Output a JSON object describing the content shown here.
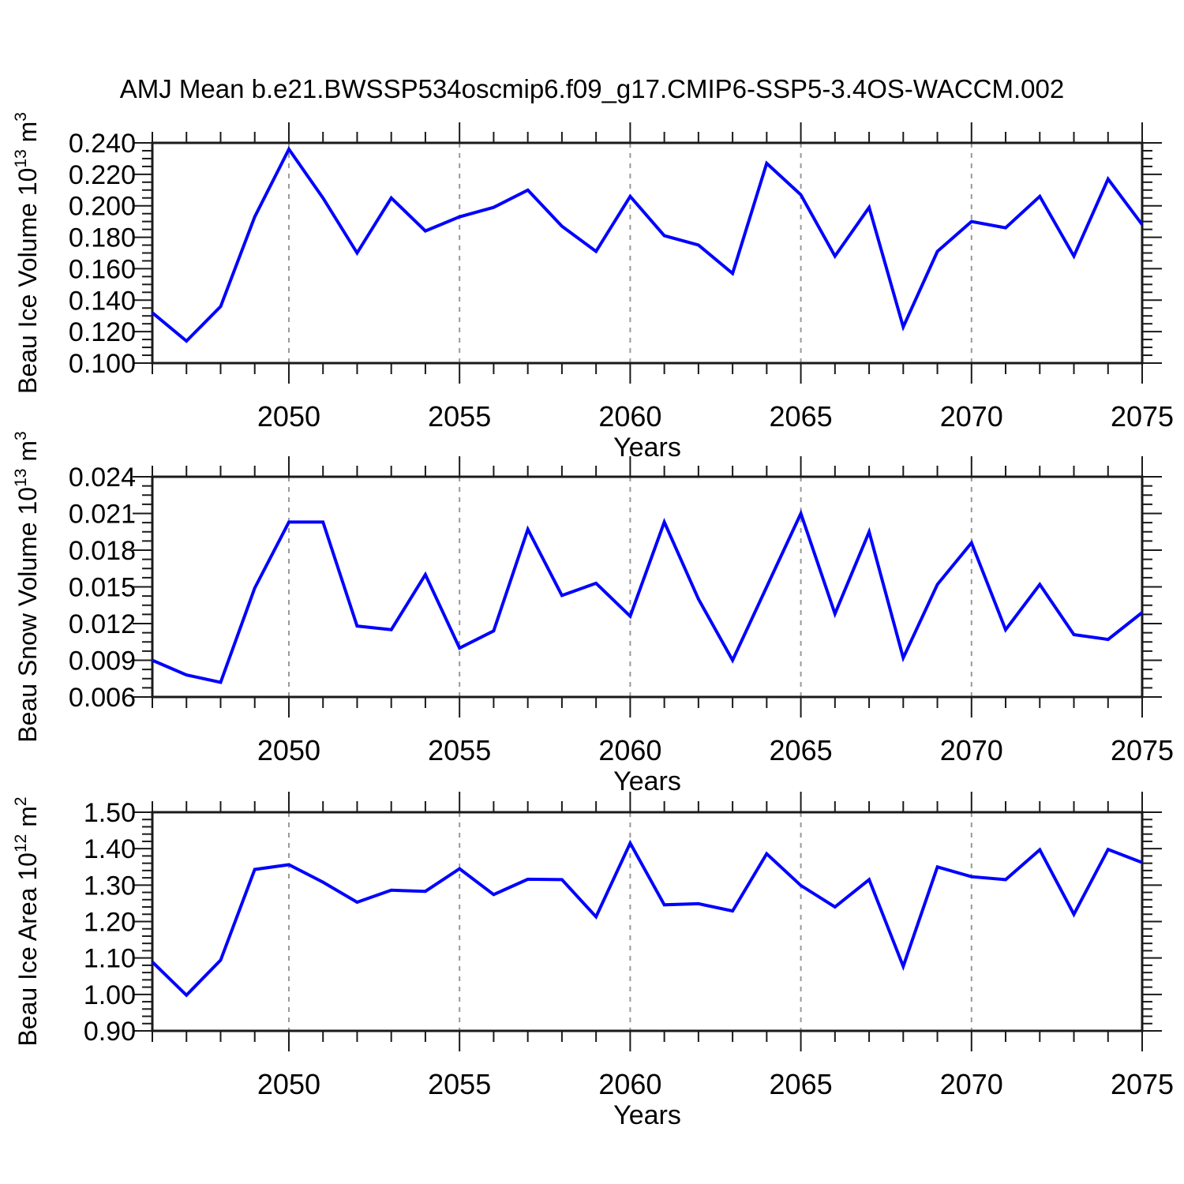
{
  "title": "AMJ Mean b.e21.BWSSP534oscmip6.f09_g17.CMIP6-SSP5-3.4OS-WACCM.002",
  "figure": {
    "xlabel": "Years",
    "x_range": [
      2046,
      2075
    ],
    "x_tick_labels": [
      "2050",
      "2055",
      "2060",
      "2065",
      "2070",
      "2075"
    ],
    "x_tick_years": [
      2050,
      2055,
      2060,
      2065,
      2070,
      2075
    ],
    "grid_years": [
      2050,
      2055,
      2060,
      2065,
      2070
    ],
    "line_color": "#0000ff",
    "grid_color": "#999999",
    "axis_color": "#1a1a1a"
  },
  "chart_data": [
    {
      "type": "line",
      "name": "beau-ice-volume",
      "ylabel": "Beau Ice Volume 10^13 m^3",
      "ylabel_parts": [
        {
          "t": "Beau Ice Volume 10"
        },
        {
          "t": "13",
          "sup": true
        },
        {
          "t": " m"
        },
        {
          "t": "3",
          "sup": true
        }
      ],
      "xlabel": "Years",
      "ylim": [
        0.1,
        0.24
      ],
      "yticks": [
        "0.240",
        "0.220",
        "0.200",
        "0.180",
        "0.160",
        "0.140",
        "0.120",
        "0.100"
      ],
      "yminor_step": 0.005,
      "grid": "vertical-dashed",
      "legend": "none",
      "x": [
        2046,
        2047,
        2048,
        2049,
        2050,
        2051,
        2052,
        2053,
        2054,
        2055,
        2056,
        2057,
        2058,
        2059,
        2060,
        2061,
        2062,
        2063,
        2064,
        2065,
        2066,
        2067,
        2068,
        2069,
        2070,
        2071,
        2072,
        2073,
        2074,
        2075
      ],
      "values": [
        0.132,
        0.114,
        0.136,
        0.193,
        0.236,
        0.205,
        0.17,
        0.205,
        0.184,
        0.193,
        0.199,
        0.21,
        0.187,
        0.171,
        0.206,
        0.181,
        0.175,
        0.157,
        0.227,
        0.207,
        0.168,
        0.199,
        0.123,
        0.171,
        0.19,
        0.186,
        0.206,
        0.168,
        0.217,
        0.188
      ]
    },
    {
      "type": "line",
      "name": "beau-snow-volume",
      "ylabel": "Beau Snow Volume 10^13 m^3",
      "ylabel_parts": [
        {
          "t": "Beau Snow Volume 10"
        },
        {
          "t": "13",
          "sup": true
        },
        {
          "t": " m"
        },
        {
          "t": "3",
          "sup": true
        }
      ],
      "xlabel": "Years",
      "ylim": [
        0.006,
        0.024
      ],
      "yticks": [
        "0.024",
        "0.021",
        "0.018",
        "0.015",
        "0.012",
        "0.009",
        "0.006"
      ],
      "yminor_step": 0.00075,
      "grid": "vertical-dashed",
      "legend": "none",
      "x": [
        2046,
        2047,
        2048,
        2049,
        2050,
        2051,
        2052,
        2053,
        2054,
        2055,
        2056,
        2057,
        2058,
        2059,
        2060,
        2061,
        2062,
        2063,
        2064,
        2065,
        2066,
        2067,
        2068,
        2069,
        2070,
        2071,
        2072,
        2073,
        2074,
        2075
      ],
      "values": [
        0.009,
        0.0078,
        0.0072,
        0.0149,
        0.0203,
        0.0203,
        0.0118,
        0.0115,
        0.016,
        0.01,
        0.0114,
        0.0197,
        0.0143,
        0.0153,
        0.0126,
        0.0203,
        0.014,
        0.009,
        0.015,
        0.021,
        0.0128,
        0.0195,
        0.0092,
        0.0152,
        0.0186,
        0.0115,
        0.0152,
        0.0111,
        0.0107,
        0.0129
      ]
    },
    {
      "type": "line",
      "name": "beau-ice-area",
      "ylabel": "Beau Ice Area 10^12 m^2",
      "ylabel_parts": [
        {
          "t": "Beau Ice Area 10"
        },
        {
          "t": "12",
          "sup": true
        },
        {
          "t": " m"
        },
        {
          "t": "2",
          "sup": true
        }
      ],
      "xlabel": "Years",
      "ylim": [
        0.9,
        1.5
      ],
      "yticks": [
        "1.50",
        "1.40",
        "1.30",
        "1.20",
        "1.10",
        "1.00",
        "0.90"
      ],
      "yminor_step": 0.02,
      "grid": "vertical-dashed",
      "legend": "none",
      "x": [
        2046,
        2047,
        2048,
        2049,
        2050,
        2051,
        2052,
        2053,
        2054,
        2055,
        2056,
        2057,
        2058,
        2059,
        2060,
        2061,
        2062,
        2063,
        2064,
        2065,
        2066,
        2067,
        2068,
        2069,
        2070,
        2071,
        2072,
        2073,
        2074,
        2075
      ],
      "values": [
        1.089,
        0.998,
        1.094,
        1.343,
        1.356,
        1.308,
        1.253,
        1.286,
        1.283,
        1.345,
        1.274,
        1.316,
        1.315,
        1.213,
        1.415,
        1.246,
        1.249,
        1.229,
        1.386,
        1.299,
        1.24,
        1.315,
        1.077,
        1.35,
        1.323,
        1.315,
        1.397,
        1.22,
        1.398,
        1.362
      ]
    }
  ]
}
